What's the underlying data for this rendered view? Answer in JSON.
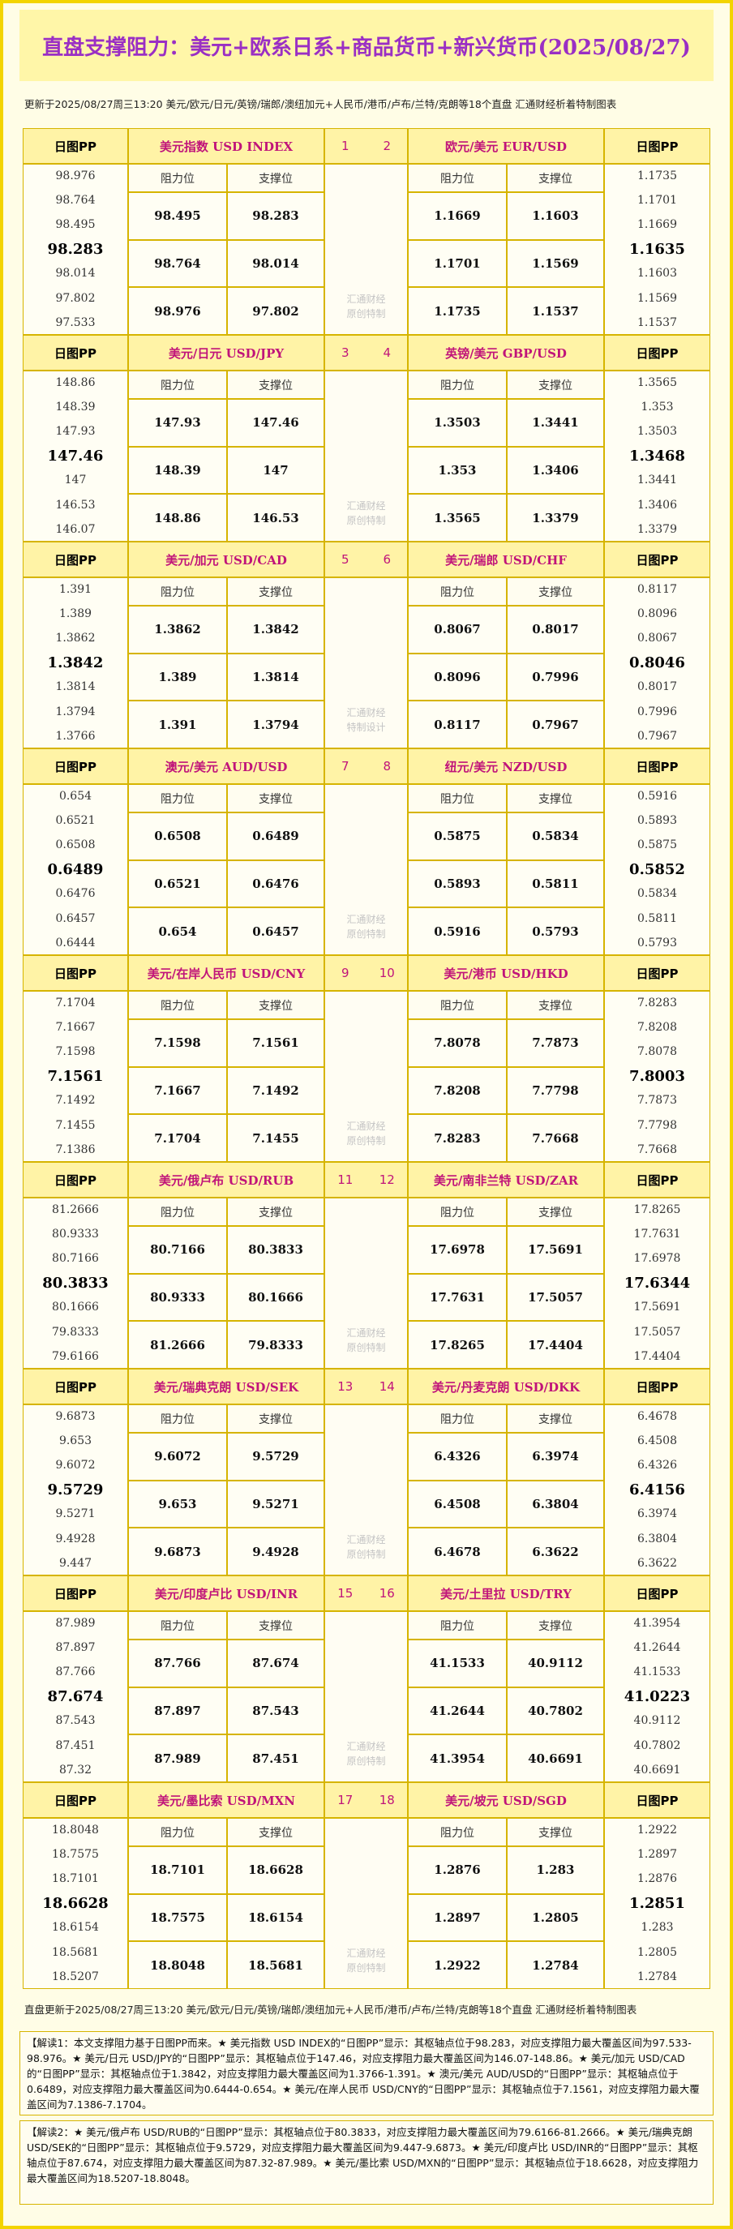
{
  "header": {
    "title": "直盘支撑阻力：美元+欧系日系+商品货币+新兴货币(2025/08/27)",
    "subtitle": "更新于2025/08/27周三13:20 美元/欧元/日元/英镑/瑞郎/澳纽加元+人民币/港币/卢布/兰特/克朗等18个直盘 汇通财经析着特制图表"
  },
  "labels": {
    "pp": "日图PP",
    "resistance": "阻力位",
    "support": "支撑位"
  },
  "blocks": [
    {
      "left": {
        "pair": "美元指数 USD INDEX",
        "index": 1,
        "pp": [
          98.976,
          98.764,
          98.495,
          98.283,
          98.014,
          97.802,
          97.533
        ],
        "resistance": [
          98.495,
          98.764,
          98.976
        ],
        "support": [
          98.283,
          98.014,
          97.802
        ]
      },
      "right": {
        "pair": "欧元/美元 EUR/USD",
        "index": 2,
        "pp": [
          1.1735,
          1.1701,
          1.1669,
          1.1635,
          1.1603,
          1.1569,
          1.1537
        ],
        "resistance": [
          1.1669,
          1.1701,
          1.1735
        ],
        "support": [
          1.1603,
          1.1569,
          1.1537
        ]
      },
      "watermark": [
        "汇通财经",
        "原创特制"
      ]
    },
    {
      "left": {
        "pair": "美元/日元 USD/JPY",
        "index": 3,
        "pp": [
          148.86,
          148.39,
          147.93,
          147.46,
          147,
          146.53,
          146.07
        ],
        "resistance": [
          147.93,
          148.39,
          148.86
        ],
        "support": [
          147.46,
          147,
          146.53
        ]
      },
      "right": {
        "pair": "英镑/美元 GBP/USD",
        "index": 4,
        "pp": [
          1.3565,
          1.353,
          1.3503,
          1.3468,
          1.3441,
          1.3406,
          1.3379
        ],
        "resistance": [
          1.3503,
          1.353,
          1.3565
        ],
        "support": [
          1.3441,
          1.3406,
          1.3379
        ]
      },
      "watermark": [
        "汇通财经",
        "原创特制"
      ]
    },
    {
      "left": {
        "pair": "美元/加元 USD/CAD",
        "index": 5,
        "pp": [
          1.391,
          1.389,
          1.3862,
          1.3842,
          1.3814,
          1.3794,
          1.3766
        ],
        "resistance": [
          1.3862,
          1.389,
          1.391
        ],
        "support": [
          1.3842,
          1.3814,
          1.3794
        ]
      },
      "right": {
        "pair": "美元/瑞郎 USD/CHF",
        "index": 6,
        "pp": [
          0.8117,
          0.8096,
          0.8067,
          0.8046,
          0.8017,
          0.7996,
          0.7967
        ],
        "resistance": [
          0.8067,
          0.8096,
          0.8117
        ],
        "support": [
          0.8017,
          0.7996,
          0.7967
        ]
      },
      "watermark": [
        "汇通财经",
        "特制设计"
      ]
    },
    {
      "left": {
        "pair": "澳元/美元 AUD/USD",
        "index": 7,
        "pp": [
          0.654,
          0.6521,
          0.6508,
          0.6489,
          0.6476,
          0.6457,
          0.6444
        ],
        "resistance": [
          0.6508,
          0.6521,
          0.654
        ],
        "support": [
          0.6489,
          0.6476,
          0.6457
        ]
      },
      "right": {
        "pair": "纽元/美元 NZD/USD",
        "index": 8,
        "pp": [
          0.5916,
          0.5893,
          0.5875,
          0.5852,
          0.5834,
          0.5811,
          0.5793
        ],
        "resistance": [
          0.5875,
          0.5893,
          0.5916
        ],
        "support": [
          0.5834,
          0.5811,
          0.5793
        ]
      },
      "watermark": [
        "汇通财经",
        "原创特制"
      ]
    },
    {
      "left": {
        "pair": "美元/在岸人民币 USD/CNY",
        "index": 9,
        "pp": [
          7.1704,
          7.1667,
          7.1598,
          7.1561,
          7.1492,
          7.1455,
          7.1386
        ],
        "resistance": [
          7.1598,
          7.1667,
          7.1704
        ],
        "support": [
          7.1561,
          7.1492,
          7.1455
        ]
      },
      "right": {
        "pair": "美元/港币 USD/HKD",
        "index": 10,
        "pp": [
          7.8283,
          7.8208,
          7.8078,
          7.8003,
          7.7873,
          7.7798,
          7.7668
        ],
        "resistance": [
          7.8078,
          7.8208,
          7.8283
        ],
        "support": [
          7.7873,
          7.7798,
          7.7668
        ]
      },
      "watermark": [
        "汇通财经",
        "原创特制"
      ]
    },
    {
      "left": {
        "pair": "美元/俄卢布 USD/RUB",
        "index": 11,
        "pp": [
          81.2666,
          80.9333,
          80.7166,
          80.3833,
          80.1666,
          79.8333,
          79.6166
        ],
        "resistance": [
          80.7166,
          80.9333,
          81.2666
        ],
        "support": [
          80.3833,
          80.1666,
          79.8333
        ]
      },
      "right": {
        "pair": "美元/南非兰特 USD/ZAR",
        "index": 12,
        "pp": [
          17.8265,
          17.7631,
          17.6978,
          17.6344,
          17.5691,
          17.5057,
          17.4404
        ],
        "resistance": [
          17.6978,
          17.7631,
          17.8265
        ],
        "support": [
          17.5691,
          17.5057,
          17.4404
        ]
      },
      "watermark": [
        "汇通财经",
        "原创特制"
      ]
    },
    {
      "left": {
        "pair": "美元/瑞典克朗 USD/SEK",
        "index": 13,
        "pp": [
          9.6873,
          9.653,
          9.6072,
          9.5729,
          9.5271,
          9.4928,
          9.447
        ],
        "resistance": [
          9.6072,
          9.653,
          9.6873
        ],
        "support": [
          9.5729,
          9.5271,
          9.4928
        ]
      },
      "right": {
        "pair": "美元/丹麦克朗 USD/DKK",
        "index": 14,
        "pp": [
          6.4678,
          6.4508,
          6.4326,
          6.4156,
          6.3974,
          6.3804,
          6.3622
        ],
        "resistance": [
          6.4326,
          6.4508,
          6.4678
        ],
        "support": [
          6.3974,
          6.3804,
          6.3622
        ]
      },
      "watermark": [
        "汇通财经",
        "原创特制"
      ]
    },
    {
      "left": {
        "pair": "美元/印度卢比 USD/INR",
        "index": 15,
        "pp": [
          87.989,
          87.897,
          87.766,
          87.674,
          87.543,
          87.451,
          87.32
        ],
        "resistance": [
          87.766,
          87.897,
          87.989
        ],
        "support": [
          87.674,
          87.543,
          87.451
        ]
      },
      "right": {
        "pair": "美元/土里拉 USD/TRY",
        "index": 16,
        "pp": [
          41.3954,
          41.2644,
          41.1533,
          41.0223,
          40.9112,
          40.7802,
          40.6691
        ],
        "resistance": [
          41.1533,
          41.2644,
          41.3954
        ],
        "support": [
          40.9112,
          40.7802,
          40.6691
        ]
      },
      "watermark": [
        "汇通财经",
        "原创特制"
      ]
    },
    {
      "left": {
        "pair": "美元/墨比索 USD/MXN",
        "index": 17,
        "pp": [
          18.8048,
          18.7575,
          18.7101,
          18.6628,
          18.6154,
          18.5681,
          18.5207
        ],
        "resistance": [
          18.7101,
          18.7575,
          18.8048
        ],
        "support": [
          18.6628,
          18.6154,
          18.5681
        ]
      },
      "right": {
        "pair": "美元/坡元 USD/SGD",
        "index": 18,
        "pp": [
          1.2922,
          1.2897,
          1.2876,
          1.2851,
          1.283,
          1.2805,
          1.2784
        ],
        "resistance": [
          1.2876,
          1.2897,
          1.2922
        ],
        "support": [
          1.283,
          1.2805,
          1.2784
        ]
      },
      "watermark": [
        "汇通财经",
        "原创特制"
      ]
    }
  ],
  "footer": {
    "update": "直盘更新于2025/08/27周三13:20 美元/欧元/日元/英镑/瑞郎/澳纽加元+人民币/港币/卢布/兰特/克朗等18个直盘 汇通财经析着特制图表",
    "notes": [
      "【解读1：本文支撑阻力基于日图PP而来。★ 美元指数 USD INDEX的“日图PP”显示：其枢轴点位于98.283，对应支撑阻力最大覆盖区间为97.533-98.976。★ 美元/日元 USD/JPY的“日图PP”显示：其枢轴点位于147.46，对应支撑阻力最大覆盖区间为146.07-148.86。★ 美元/加元 USD/CAD的“日图PP”显示：其枢轴点位于1.3842，对应支撑阻力最大覆盖区间为1.3766-1.391。★ 澳元/美元 AUD/USD的“日图PP”显示：其枢轴点位于0.6489，对应支撑阻力最大覆盖区间为0.6444-0.654。★ 美元/在岸人民币 USD/CNY的“日图PP”显示：其枢轴点位于7.1561，对应支撑阻力最大覆盖区间为7.1386-7.1704。",
      "【解读2：★ 美元/俄卢布 USD/RUB的“日图PP”显示：其枢轴点位于80.3833，对应支撑阻力最大覆盖区间为79.6166-81.2666。★ 美元/瑞典克朗 USD/SEK的“日图PP”显示：其枢轴点位于9.5729，对应支撑阻力最大覆盖区间为9.447-9.6873。★ 美元/印度卢比 USD/INR的“日图PP”显示：其枢轴点位于87.674，对应支撑阻力最大覆盖区间为87.32-87.989。★ 美元/墨比索 USD/MXN的“日图PP”显示：其枢轴点位于18.6628，对应支撑阻力最大覆盖区间为18.5207-18.8048。"
    ]
  }
}
